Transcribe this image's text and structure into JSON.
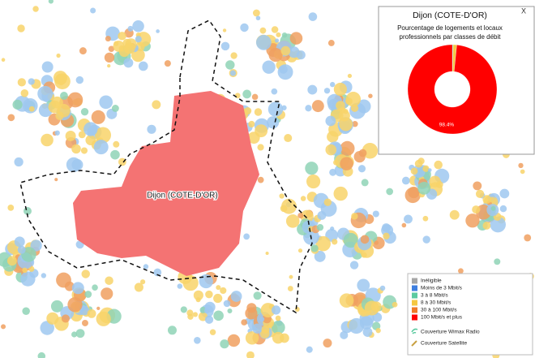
{
  "map": {
    "city_label": "Dijon (COTE-D'OR)"
  },
  "popup": {
    "close": "X",
    "title": "Dijon (COTE-D'OR)",
    "subtitle": [
      "Pourcentage de logements et locaux",
      "professionnels par classes de débit"
    ]
  },
  "chart_data": {
    "type": "pie",
    "donut": true,
    "categories": [
      "Inéligible",
      "Moins de 3 Mbit/s",
      "3 à 8 Mbit/s",
      "8 à 30 Mbit/s",
      "30 à 100 Mbit/s",
      "100 Mbit/s et plus"
    ],
    "values": [
      0,
      0,
      0.3,
      1.3,
      0,
      98.4
    ],
    "value_labels": [
      null,
      null,
      null,
      null,
      null,
      "98.4%"
    ],
    "colors": [
      "#a6a6a6",
      "#3f7fdf",
      "#5ccaa0",
      "#f5c842",
      "#f07a28",
      "#ff0000"
    ]
  },
  "legend": {
    "extra": [
      "Couverture Wimax Radio",
      "Couverture Satellite"
    ]
  }
}
